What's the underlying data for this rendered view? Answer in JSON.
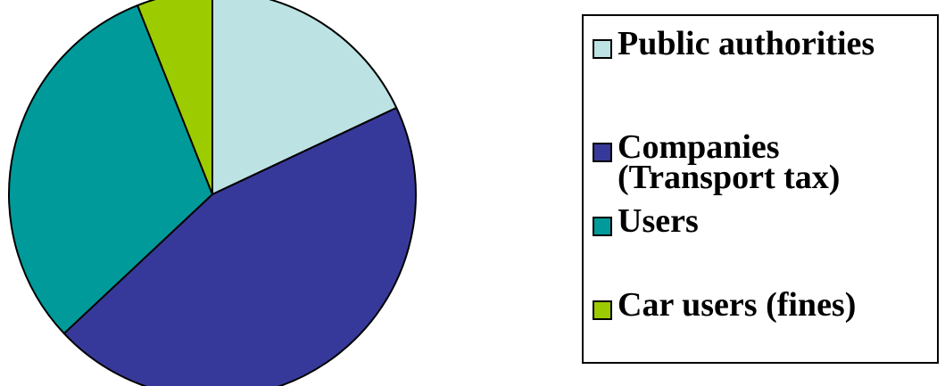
{
  "chart_data": {
    "type": "pie",
    "title": "",
    "series": [
      {
        "values": [
          18,
          45,
          31,
          6
        ]
      }
    ],
    "categories": [
      "Public authorities",
      "Companies\n(Transport tax)",
      "Users",
      "Car users (fines)"
    ],
    "legend": {
      "placement": "right",
      "items": [
        {
          "label": "Public authorities",
          "color": "#bde2e4"
        },
        {
          "label": "Companies\n(Transport tax)",
          "color": "#37399a"
        },
        {
          "label": "Users",
          "color": "#019a9a"
        },
        {
          "label": "Car users (fines)",
          "color": "#9ccc00"
        }
      ]
    },
    "colors": [
      "#bde2e4",
      "#37399a",
      "#019a9a",
      "#9ccc00"
    ]
  }
}
